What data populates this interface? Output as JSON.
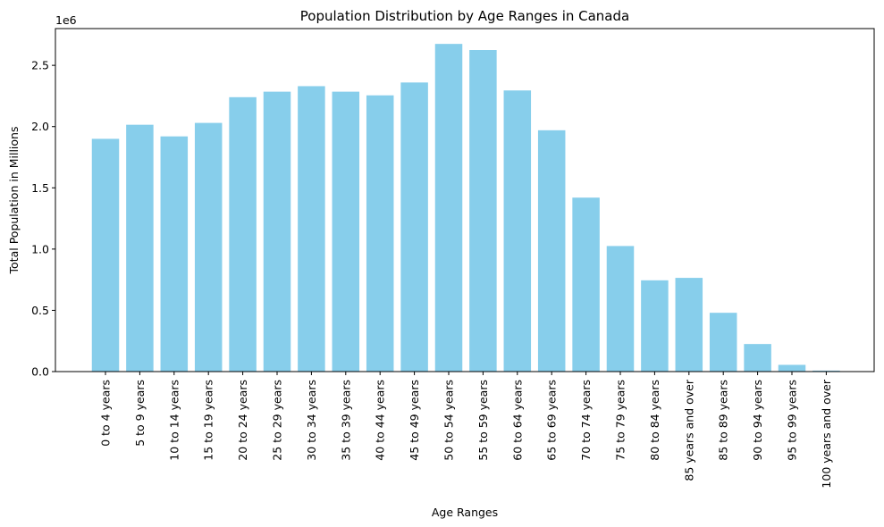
{
  "chart_data": {
    "type": "bar",
    "title": "Population Distribution by Age Ranges in Canada",
    "xlabel": "Age Ranges",
    "ylabel": "Total Population in Millions",
    "offset_text": "1e6",
    "ylim": [
      0,
      2800000
    ],
    "yticks": [
      0,
      500000,
      1000000,
      1500000,
      2000000,
      2500000
    ],
    "ytick_labels": [
      "0.0",
      "0.5",
      "1.0",
      "1.5",
      "2.0",
      "2.5"
    ],
    "bar_color": "#87ceeb",
    "grid": false,
    "categories": [
      "0 to 4 years",
      "5 to 9 years",
      "10 to 14 years",
      "15 to 19 years",
      "20 to 24 years",
      "25 to 29 years",
      "30 to 34 years",
      "35 to 39 years",
      "40 to 44 years",
      "45 to 49 years",
      "50 to 54 years",
      "55 to 59 years",
      "60 to 64 years",
      "65 to 69 years",
      "70 to 74 years",
      "75 to 79 years",
      "80 to 84 years",
      "85 years and over",
      "85 to 89 years",
      "90 to 94 years",
      "95 to 99 years",
      "100 years and over"
    ],
    "values": [
      1900000,
      2015000,
      1920000,
      2030000,
      2240000,
      2285000,
      2330000,
      2285000,
      2255000,
      2360000,
      2675000,
      2625000,
      2295000,
      1970000,
      1420000,
      1025000,
      745000,
      765000,
      480000,
      225000,
      55000,
      8000
    ]
  }
}
